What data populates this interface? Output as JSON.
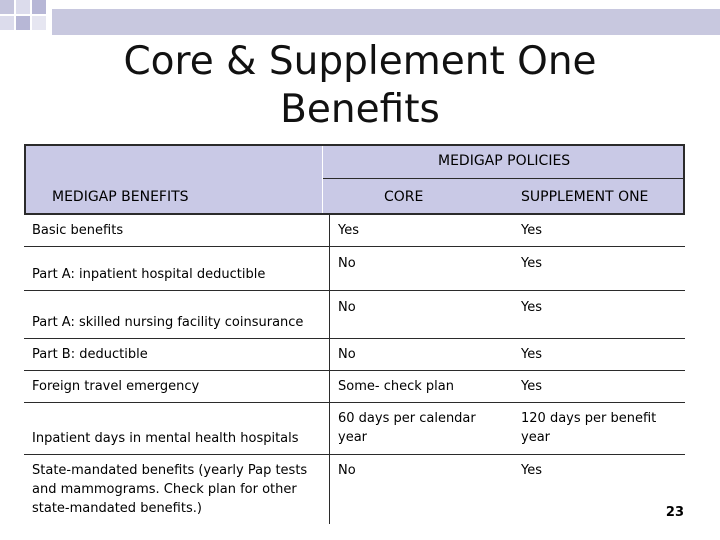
{
  "slide": {
    "title_line1": "Core & Supplement One",
    "title_line2": "Benefits",
    "page_number": "23"
  },
  "table": {
    "header_group": "MEDIGAP POLICIES",
    "benefits_header": "MEDIGAP BENEFITS",
    "col_core": "CORE",
    "col_supplement": "SUPPLEMENT ONE",
    "rows": [
      {
        "benefit": "Basic benefits",
        "core": "Yes",
        "supplement": "Yes"
      },
      {
        "benefit": "Part A: inpatient hospital deductible",
        "core": "No",
        "supplement": "Yes"
      },
      {
        "benefit": "Part A: skilled nursing facility coinsurance",
        "core": "No",
        "supplement": "Yes"
      },
      {
        "benefit": "Part B: deductible",
        "core": "No",
        "supplement": "Yes"
      },
      {
        "benefit": "Foreign travel emergency",
        "core": "Some- check plan",
        "supplement": "Yes"
      },
      {
        "benefit": "Inpatient days in mental health hospitals",
        "core": "60 days per calendar year",
        "supplement": "120 days per benefit year"
      },
      {
        "benefit": "State-mandated benefits (yearly Pap tests and mammograms. Check plan for other state-mandated benefits.)",
        "core": "No",
        "supplement": "Yes"
      }
    ]
  }
}
